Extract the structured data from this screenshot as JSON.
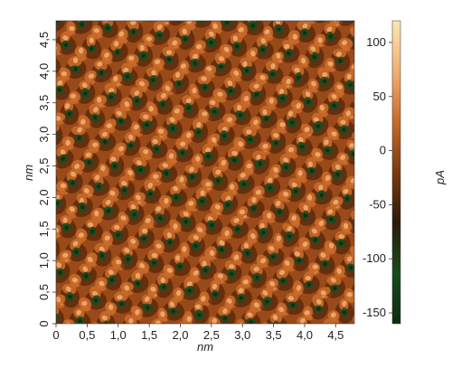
{
  "image": {
    "title": "",
    "x_axis": {
      "label": "nm",
      "range": [
        0,
        4.8
      ],
      "ticks": [
        {
          "value": 0,
          "label": "0"
        },
        {
          "value": 0.5,
          "label": "0,5"
        },
        {
          "value": 1.0,
          "label": "1,0"
        },
        {
          "value": 1.5,
          "label": "1,5"
        },
        {
          "value": 2.0,
          "label": "2,0"
        },
        {
          "value": 2.5,
          "label": "2,5"
        },
        {
          "value": 3.0,
          "label": "3,0"
        },
        {
          "value": 3.5,
          "label": "3,5"
        },
        {
          "value": 4.0,
          "label": "4,0"
        },
        {
          "value": 4.5,
          "label": "4,5"
        }
      ]
    },
    "y_axis": {
      "label": "nm",
      "range": [
        0,
        4.8
      ],
      "ticks": [
        {
          "value": 0,
          "label": "0"
        },
        {
          "value": 0.5,
          "label": "0,5"
        },
        {
          "value": 1.0,
          "label": "1,0"
        },
        {
          "value": 1.5,
          "label": "1,5"
        },
        {
          "value": 2.0,
          "label": "2,0"
        },
        {
          "value": 2.5,
          "label": "2,5"
        },
        {
          "value": 3.0,
          "label": "3,0"
        },
        {
          "value": 3.5,
          "label": "3,5"
        },
        {
          "value": 4.0,
          "label": "4,0"
        },
        {
          "value": 4.5,
          "label": "4,5"
        }
      ]
    },
    "colorbar": {
      "label": "pA",
      "range": [
        -160,
        120
      ],
      "ticks": [
        {
          "value": 100,
          "label": "100"
        },
        {
          "value": 50,
          "label": "50"
        },
        {
          "value": 0,
          "label": "0"
        },
        {
          "value": -50,
          "label": "-50"
        },
        {
          "value": -100,
          "label": "-100"
        },
        {
          "value": -150,
          "label": "-150"
        }
      ],
      "colors": [
        "#0d2a10",
        "#1a4a1e",
        "#2a1a0a",
        "#7a3a10",
        "#c8692a",
        "#f2b072",
        "#fde6b4"
      ]
    },
    "lattice": {
      "period_nm": 0.42,
      "angle_deg": 8
    }
  }
}
